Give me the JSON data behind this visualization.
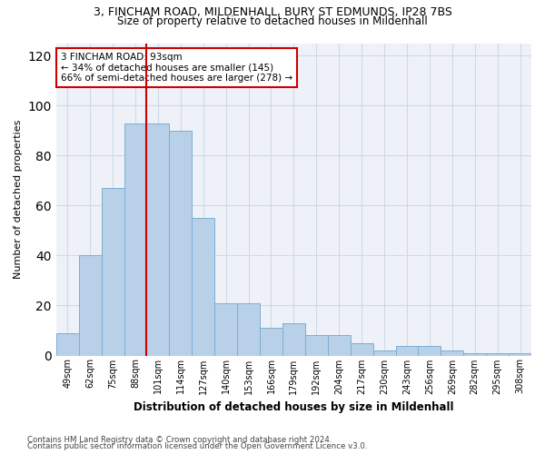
{
  "title_line1": "3, FINCHAM ROAD, MILDENHALL, BURY ST EDMUNDS, IP28 7BS",
  "title_line2": "Size of property relative to detached houses in Mildenhall",
  "xlabel": "Distribution of detached houses by size in Mildenhall",
  "ylabel": "Number of detached properties",
  "bar_values": [
    9,
    40,
    67,
    93,
    93,
    90,
    55,
    21,
    21,
    11,
    13,
    8,
    8,
    5,
    2,
    4,
    4,
    2,
    1,
    1,
    1
  ],
  "categories": [
    "49sqm",
    "62sqm",
    "75sqm",
    "88sqm",
    "101sqm",
    "114sqm",
    "127sqm",
    "140sqm",
    "153sqm",
    "166sqm",
    "179sqm",
    "192sqm",
    "204sqm",
    "217sqm",
    "230sqm",
    "243sqm",
    "256sqm",
    "269sqm",
    "282sqm",
    "295sqm",
    "308sqm"
  ],
  "bar_color": "#b8d0e8",
  "bar_edge_color": "#7aafd4",
  "vline_color": "#cc0000",
  "vline_x_index": 3.5,
  "annotation_text": "3 FINCHAM ROAD: 93sqm\n← 34% of detached houses are smaller (145)\n66% of semi-detached houses are larger (278) →",
  "annotation_box_color": "#ffffff",
  "annotation_box_edge_color": "#cc0000",
  "ylim": [
    0,
    125
  ],
  "yticks": [
    0,
    20,
    40,
    60,
    80,
    100,
    120
  ],
  "grid_color": "#d0d8e8",
  "bg_color": "#eef2f8",
  "footer_line1": "Contains HM Land Registry data © Crown copyright and database right 2024.",
  "footer_line2": "Contains public sector information licensed under the Open Government Licence v3.0."
}
